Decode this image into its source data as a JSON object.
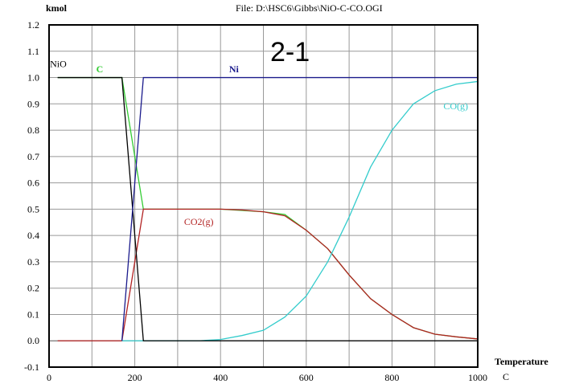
{
  "chart_data": {
    "type": "line",
    "title": "File: D:\\HSC6\\Gibbs\\NiO-C-CO.OGI",
    "annotation": "2-1",
    "ylabel": "kmol",
    "xlabel": "Temperature",
    "xunit": "C",
    "xlim": [
      0,
      1000
    ],
    "ylim": [
      -0.1,
      1.2
    ],
    "grid": true,
    "xticks": [
      0,
      200,
      400,
      600,
      800,
      1000
    ],
    "xgrid_step": 100,
    "yticks": [
      "-0.1",
      "0.0",
      "0.1",
      "0.2",
      "0.3",
      "0.4",
      "0.5",
      "0.6",
      "0.7",
      "0.8",
      "0.9",
      "1.0",
      "1.1",
      "1.2"
    ],
    "series": [
      {
        "name": "C",
        "color": "#33cc33",
        "label_at": [
          110,
          1.02
        ],
        "x": [
          20,
          170,
          220,
          400,
          500,
          550,
          600,
          650,
          700,
          750,
          800,
          850,
          900,
          950,
          1000
        ],
        "y": [
          1.0,
          1.0,
          0.5,
          0.5,
          0.49,
          0.48,
          0.42,
          0.35,
          0.25,
          0.16,
          0.1,
          0.05,
          0.025,
          0.015,
          0.007
        ]
      },
      {
        "name": "CO2(g)",
        "color": "#b22222",
        "label_at": [
          315,
          0.44
        ],
        "x": [
          20,
          170,
          220,
          400,
          450,
          500,
          550,
          600,
          650,
          700,
          750,
          800,
          850,
          900,
          950,
          1000
        ],
        "y": [
          0,
          0,
          0.5,
          0.5,
          0.497,
          0.49,
          0.475,
          0.42,
          0.35,
          0.25,
          0.16,
          0.1,
          0.05,
          0.025,
          0.015,
          0.007
        ]
      },
      {
        "name": "CO(g)",
        "color": "#33cccc",
        "label_at": [
          920,
          0.88
        ],
        "x": [
          170,
          350,
          400,
          450,
          500,
          550,
          600,
          650,
          700,
          750,
          800,
          850,
          900,
          950,
          1000
        ],
        "y": [
          0,
          0,
          0.005,
          0.02,
          0.04,
          0.09,
          0.17,
          0.3,
          0.47,
          0.66,
          0.8,
          0.9,
          0.95,
          0.975,
          0.985
        ]
      },
      {
        "name": "NiO",
        "color": "#000000",
        "label_at": [
          2,
          1.04
        ],
        "x": [
          20,
          170,
          220,
          340,
          1000
        ],
        "y": [
          1.0,
          1.0,
          0,
          0,
          0
        ]
      },
      {
        "name": "Ni",
        "color": "#1a1a8c",
        "label_at": [
          420,
          1.02
        ],
        "x": [
          170,
          220,
          1000
        ],
        "y": [
          0,
          1.0,
          1.0
        ]
      }
    ]
  }
}
